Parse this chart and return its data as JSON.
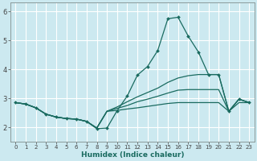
{
  "xlabel": "Humidex (Indice chaleur)",
  "xlim": [
    -0.5,
    23.5
  ],
  "ylim": [
    1.5,
    6.3
  ],
  "yticks": [
    2,
    3,
    4,
    5,
    6
  ],
  "xticks": [
    0,
    1,
    2,
    3,
    4,
    5,
    6,
    7,
    8,
    9,
    10,
    11,
    12,
    13,
    14,
    15,
    16,
    17,
    18,
    19,
    20,
    21,
    22,
    23
  ],
  "bg_color": "#cce9f0",
  "line_color": "#1a6b60",
  "grid_color": "#ffffff",
  "lines": [
    {
      "x": [
        0,
        1,
        2,
        3,
        4,
        5,
        6,
        7,
        8,
        9,
        10,
        11,
        12,
        13,
        14,
        15,
        16,
        17,
        18,
        19,
        20,
        21,
        22,
        23
      ],
      "y": [
        2.85,
        2.8,
        2.67,
        2.45,
        2.35,
        2.3,
        2.28,
        2.2,
        1.95,
        1.97,
        2.57,
        3.08,
        3.8,
        4.1,
        4.65,
        5.75,
        5.8,
        5.15,
        4.6,
        3.82,
        3.82,
        2.55,
        2.97,
        2.85
      ],
      "has_markers": true
    },
    {
      "x": [
        0,
        1,
        2,
        3,
        4,
        5,
        6,
        7,
        8,
        9,
        10,
        11,
        12,
        13,
        14,
        15,
        16,
        17,
        18,
        19,
        20,
        21,
        22,
        23
      ],
      "y": [
        2.85,
        2.8,
        2.67,
        2.45,
        2.35,
        2.3,
        2.28,
        2.2,
        1.97,
        2.55,
        2.7,
        2.88,
        3.05,
        3.2,
        3.35,
        3.55,
        3.7,
        3.78,
        3.82,
        3.82,
        3.82,
        2.55,
        2.97,
        2.85
      ],
      "has_markers": false
    },
    {
      "x": [
        0,
        1,
        2,
        3,
        4,
        5,
        6,
        7,
        8,
        9,
        10,
        11,
        12,
        13,
        14,
        15,
        16,
        17,
        18,
        19,
        20,
        21,
        22,
        23
      ],
      "y": [
        2.85,
        2.8,
        2.67,
        2.45,
        2.35,
        2.3,
        2.28,
        2.2,
        1.97,
        2.55,
        2.65,
        2.75,
        2.88,
        2.97,
        3.07,
        3.18,
        3.28,
        3.3,
        3.3,
        3.3,
        3.3,
        2.55,
        2.97,
        2.85
      ],
      "has_markers": false
    },
    {
      "x": [
        0,
        1,
        2,
        3,
        4,
        5,
        6,
        7,
        8,
        9,
        10,
        11,
        12,
        13,
        14,
        15,
        16,
        17,
        18,
        19,
        20,
        21,
        22,
        23
      ],
      "y": [
        2.85,
        2.8,
        2.67,
        2.45,
        2.35,
        2.3,
        2.28,
        2.2,
        1.97,
        2.55,
        2.58,
        2.63,
        2.67,
        2.72,
        2.77,
        2.82,
        2.85,
        2.85,
        2.85,
        2.85,
        2.85,
        2.55,
        2.85,
        2.85
      ],
      "has_markers": false
    }
  ]
}
